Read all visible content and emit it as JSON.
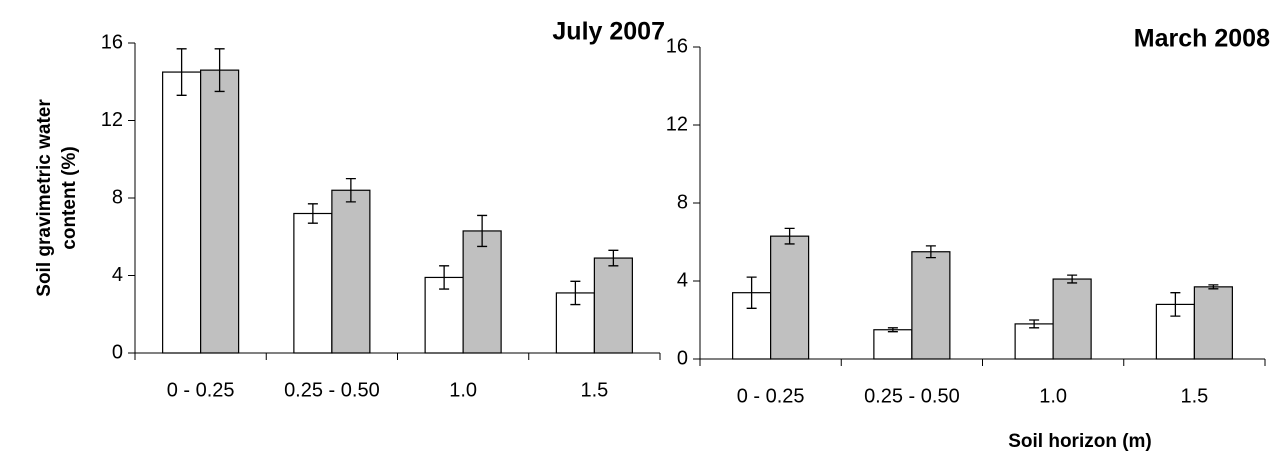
{
  "chart_data": [
    {
      "type": "bar",
      "title": "July 2007",
      "ylabel": [
        "Soil gravimetric water",
        "content (%)"
      ],
      "categories": [
        "0 - 0.25",
        "0.25 - 0.50",
        "1.0",
        "1.5"
      ],
      "series": [
        {
          "color": "#ffffff",
          "values": [
            14.5,
            7.2,
            3.9,
            3.1
          ],
          "errors": [
            1.2,
            0.5,
            0.6,
            0.6
          ]
        },
        {
          "color": "#c0c0c0",
          "values": [
            14.6,
            8.4,
            6.3,
            4.9
          ],
          "errors": [
            1.1,
            0.6,
            0.8,
            0.4
          ]
        }
      ],
      "ylim": [
        0,
        16
      ],
      "yticks": [
        0,
        4,
        8,
        12,
        16
      ]
    },
    {
      "type": "bar",
      "title": "March 2008",
      "xlabel": "Soil horizon (m)",
      "categories": [
        "0 - 0.25",
        "0.25 - 0.50",
        "1.0",
        "1.5"
      ],
      "series": [
        {
          "color": "#ffffff",
          "values": [
            3.4,
            1.5,
            1.8,
            2.8
          ],
          "errors": [
            0.8,
            0.1,
            0.2,
            0.6
          ]
        },
        {
          "color": "#c0c0c0",
          "values": [
            6.3,
            5.5,
            4.1,
            3.7
          ],
          "errors": [
            0.4,
            0.3,
            0.2,
            0.1
          ]
        }
      ],
      "ylim": [
        0,
        16
      ],
      "yticks": [
        0,
        4,
        8,
        12,
        16
      ]
    }
  ]
}
